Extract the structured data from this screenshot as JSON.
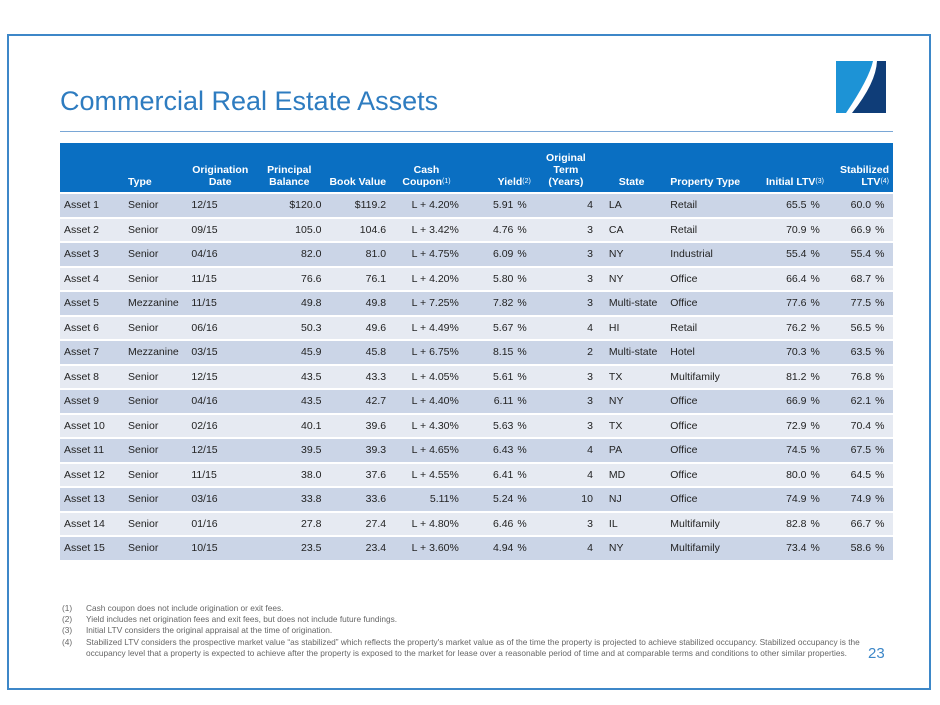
{
  "title": "Commercial Real Estate Assets",
  "page_number": "23",
  "colors": {
    "header": "#0a6fc2",
    "title": "#2e7cc0",
    "row_dark": "#cbd5e7",
    "row_light": "#e6eaf2"
  },
  "headers": {
    "type": "Type",
    "orig_date": [
      "Origination",
      "Date"
    ],
    "principal": [
      "Principal",
      "Balance"
    ],
    "book": "Book Value",
    "coupon": [
      "Cash",
      "Coupon"
    ],
    "coupon_sup": "(1)",
    "yield": "Yield",
    "yield_sup": "(2)",
    "term": [
      "Original Term",
      "(Years)"
    ],
    "state": "State",
    "property": "Property Type",
    "initial_ltv": "Initial LTV",
    "initial_sup": "(3)",
    "stab_ltv": [
      "Stabilized",
      "LTV"
    ],
    "stab_sup": "(4)"
  },
  "rows": [
    [
      "Asset 1",
      "Senior",
      "12/15",
      "$120.0",
      "$119.2",
      "L + 4.20%",
      "5.91",
      "%",
      "4",
      "LA",
      "Retail",
      "65.5",
      "%",
      "60.0",
      "%"
    ],
    [
      "Asset 2",
      "Senior",
      "09/15",
      "105.0",
      "104.6",
      "L + 3.42%",
      "4.76",
      "%",
      "3",
      "CA",
      "Retail",
      "70.9",
      "%",
      "66.9",
      "%"
    ],
    [
      "Asset 3",
      "Senior",
      "04/16",
      "82.0",
      "81.0",
      "L + 4.75%",
      "6.09",
      "%",
      "3",
      "NY",
      "Industrial",
      "55.4",
      "%",
      "55.4",
      "%"
    ],
    [
      "Asset 4",
      "Senior",
      "11/15",
      "76.6",
      "76.1",
      "L + 4.20%",
      "5.80",
      "%",
      "3",
      "NY",
      "Office",
      "66.4",
      "%",
      "68.7",
      "%"
    ],
    [
      "Asset 5",
      "Mezzanine",
      "11/15",
      "49.8",
      "49.8",
      "L + 7.25%",
      "7.82",
      "%",
      "3",
      "Multi-state",
      "Office",
      "77.6",
      "%",
      "77.5",
      "%"
    ],
    [
      "Asset 6",
      "Senior",
      "06/16",
      "50.3",
      "49.6",
      "L + 4.49%",
      "5.67",
      "%",
      "4",
      "HI",
      "Retail",
      "76.2",
      "%",
      "56.5",
      "%"
    ],
    [
      "Asset 7",
      "Mezzanine",
      "03/15",
      "45.9",
      "45.8",
      "L + 6.75%",
      "8.15",
      "%",
      "2",
      "Multi-state",
      "Hotel",
      "70.3",
      "%",
      "63.5",
      "%"
    ],
    [
      "Asset 8",
      "Senior",
      "12/15",
      "43.5",
      "43.3",
      "L + 4.05%",
      "5.61",
      "%",
      "3",
      "TX",
      "Multifamily",
      "81.2",
      "%",
      "76.8",
      "%"
    ],
    [
      "Asset 9",
      "Senior",
      "04/16",
      "43.5",
      "42.7",
      "L + 4.40%",
      "6.11",
      "%",
      "3",
      "NY",
      "Office",
      "66.9",
      "%",
      "62.1",
      "%"
    ],
    [
      "Asset 10",
      "Senior",
      "02/16",
      "40.1",
      "39.6",
      "L + 4.30%",
      "5.63",
      "%",
      "3",
      "TX",
      "Office",
      "72.9",
      "%",
      "70.4",
      "%"
    ],
    [
      "Asset 11",
      "Senior",
      "12/15",
      "39.5",
      "39.3",
      "L + 4.65%",
      "6.43",
      "%",
      "4",
      "PA",
      "Office",
      "74.5",
      "%",
      "67.5",
      "%"
    ],
    [
      "Asset 12",
      "Senior",
      "11/15",
      "38.0",
      "37.6",
      "L + 4.55%",
      "6.41",
      "%",
      "4",
      "MD",
      "Office",
      "80.0",
      "%",
      "64.5",
      "%"
    ],
    [
      "Asset 13",
      "Senior",
      "03/16",
      "33.8",
      "33.6",
      "5.11%",
      "5.24",
      "%",
      "10",
      "NJ",
      "Office",
      "74.9",
      "%",
      "74.9",
      "%"
    ],
    [
      "Asset 14",
      "Senior",
      "01/16",
      "27.8",
      "27.4",
      "L + 4.80%",
      "6.46",
      "%",
      "3",
      "IL",
      "Multifamily",
      "82.8",
      "%",
      "66.7",
      "%"
    ],
    [
      "Asset 15",
      "Senior",
      "10/15",
      "23.5",
      "23.4",
      "L + 3.60%",
      "4.94",
      "%",
      "4",
      "NY",
      "Multifamily",
      "73.4",
      "%",
      "58.6",
      "%"
    ]
  ],
  "footnotes": [
    {
      "n": "(1)",
      "text": "Cash coupon does not include origination or exit fees."
    },
    {
      "n": "(2)",
      "text": "Yield includes net origination fees and exit fees, but does not include future fundings."
    },
    {
      "n": "(3)",
      "text": "Initial LTV considers the original appraisal at the time of origination."
    },
    {
      "n": "(4)",
      "text": "Stabilized LTV considers the prospective market value “as stabilized” which reflects the property's market value as of the time the property is projected to achieve stabilized occupancy. Stabilized occupancy is the occupancy level that a property is expected to achieve after the property is exposed to the market for lease over a reasonable period of time and at comparable terms and conditions to other similar properties."
    }
  ]
}
